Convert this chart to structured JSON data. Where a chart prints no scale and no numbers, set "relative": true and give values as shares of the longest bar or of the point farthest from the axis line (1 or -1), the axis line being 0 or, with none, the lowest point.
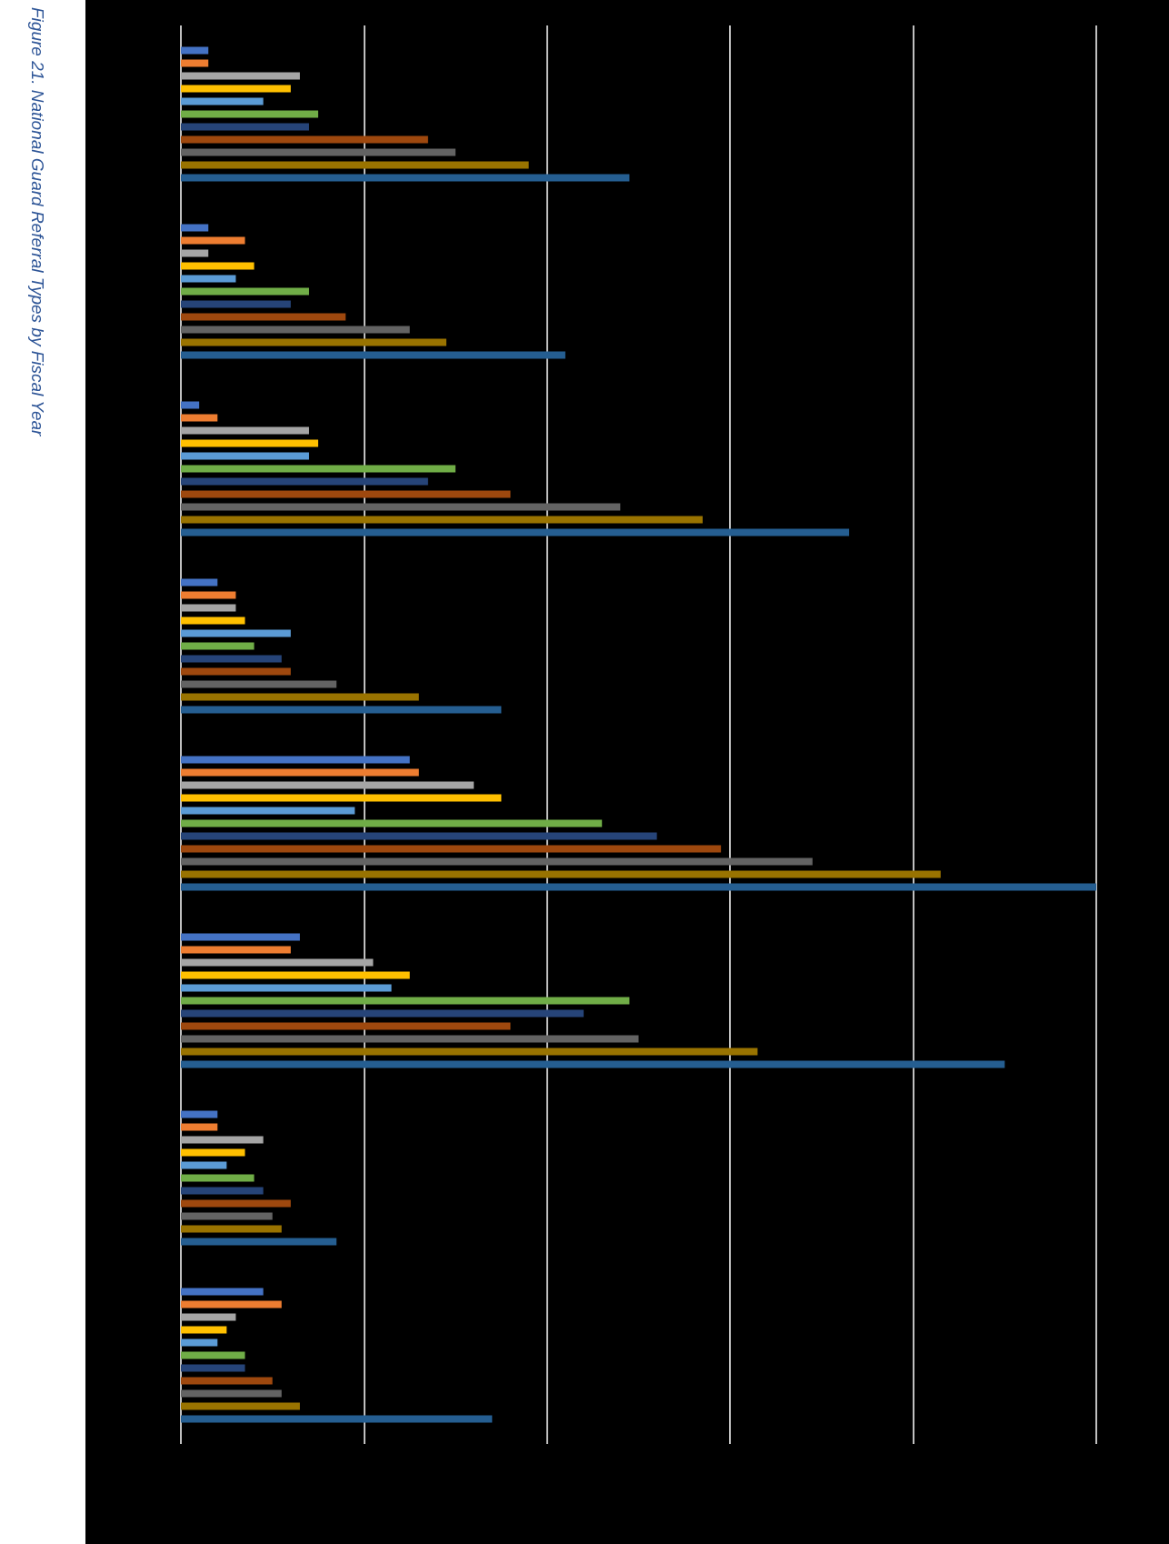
{
  "chart_data": {
    "type": "bar",
    "orientation": "horizontal",
    "relative": true,
    "title": "Figure 21.  National Guard Referral Types by Fiscal Year",
    "grid": "x",
    "categories": [
      null,
      null,
      null,
      null,
      null,
      null,
      null,
      null
    ],
    "series": [
      {
        "color": "#4472c4",
        "values": [
          0.03,
          0.03,
          0.02,
          0.04,
          0.25,
          0.13,
          0.04,
          0.09
        ]
      },
      {
        "color": "#ed7d31",
        "values": [
          0.03,
          0.07,
          0.04,
          0.06,
          0.26,
          0.12,
          0.04,
          0.11
        ]
      },
      {
        "color": "#a5a5a5",
        "values": [
          0.13,
          0.03,
          0.14,
          0.06,
          0.32,
          0.21,
          0.09,
          0.06
        ]
      },
      {
        "color": "#ffc000",
        "values": [
          0.12,
          0.08,
          0.15,
          0.07,
          0.35,
          0.25,
          0.07,
          0.05
        ]
      },
      {
        "color": "#5b9bd5",
        "values": [
          0.09,
          0.06,
          0.14,
          0.12,
          0.19,
          0.23,
          0.05,
          0.04
        ]
      },
      {
        "color": "#70ad47",
        "values": [
          0.15,
          0.14,
          0.3,
          0.08,
          0.46,
          0.49,
          0.08,
          0.07
        ]
      },
      {
        "color": "#264478",
        "values": [
          0.14,
          0.12,
          0.27,
          0.11,
          0.52,
          0.44,
          0.09,
          0.07
        ]
      },
      {
        "color": "#9e480e",
        "values": [
          0.27,
          0.18,
          0.36,
          0.12,
          0.59,
          0.36,
          0.12,
          0.1
        ]
      },
      {
        "color": "#636363",
        "values": [
          0.3,
          0.25,
          0.48,
          0.17,
          0.69,
          0.5,
          0.1,
          0.11
        ]
      },
      {
        "color": "#997300",
        "values": [
          0.38,
          0.29,
          0.57,
          0.26,
          0.83,
          0.63,
          0.11,
          0.13
        ]
      },
      {
        "color": "#255e91",
        "values": [
          0.49,
          0.42,
          0.73,
          0.35,
          1,
          0.9,
          0.17,
          0.34
        ]
      }
    ]
  }
}
